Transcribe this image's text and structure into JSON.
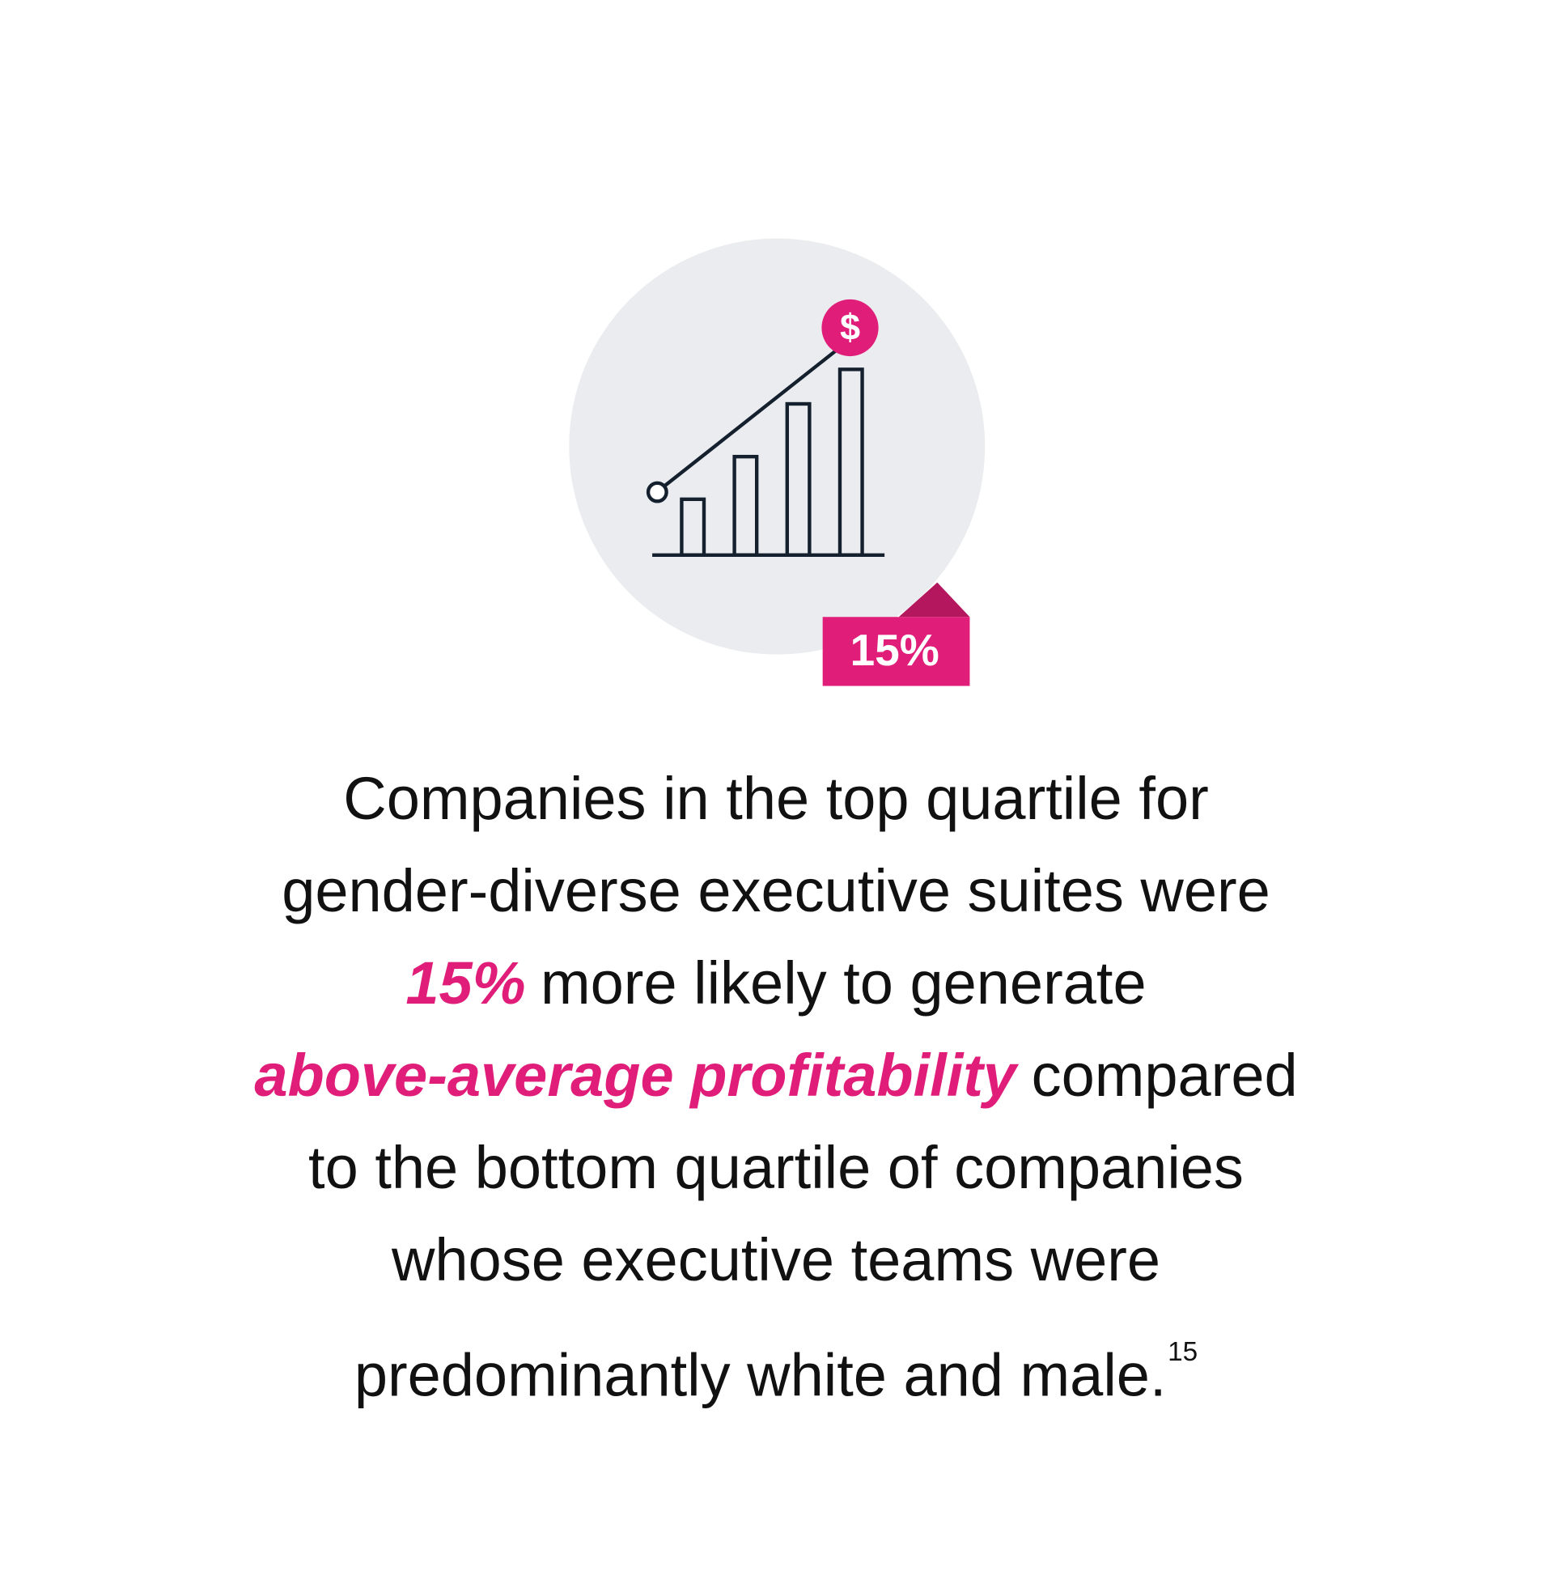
{
  "icon": {
    "symbol": "$",
    "badge": "15%"
  },
  "statement": {
    "lines": [
      [
        {
          "text": "Companies in the top quartile for"
        }
      ],
      [
        {
          "text": "gender-diverse executive suites were"
        }
      ],
      [
        {
          "text": "15%",
          "emphasis": true
        },
        {
          "text": "more likely to generate"
        }
      ],
      [
        {
          "text": "above-average profitability",
          "emphasis": true
        },
        {
          "text": "compared"
        }
      ],
      [
        {
          "text": "to the bottom quartile of companies"
        }
      ],
      [
        {
          "text": "whose executive teams were"
        }
      ],
      [
        {
          "text": "predominantly white and male."
        },
        {
          "text": "15",
          "footnote": true
        }
      ]
    ]
  }
}
